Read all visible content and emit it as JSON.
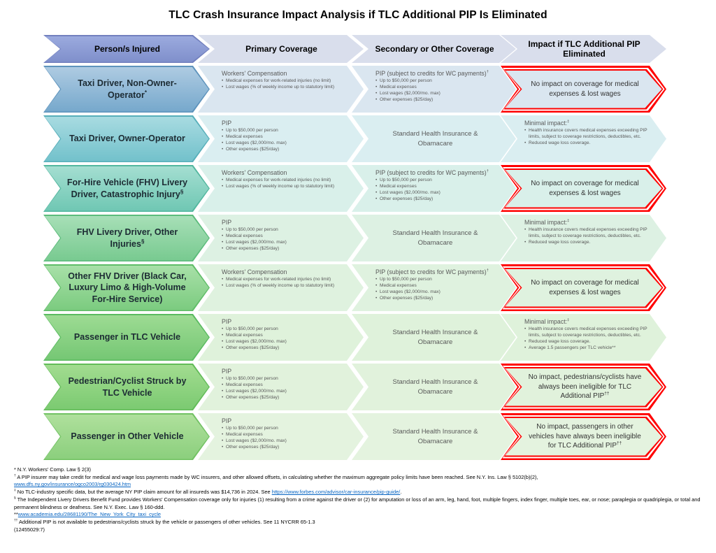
{
  "title": "TLC Crash Insurance Impact Analysis if TLC Additional PIP Is Eliminated",
  "headers": [
    {
      "label": "Person/s Injured"
    },
    {
      "label": "Primary Coverage"
    },
    {
      "label": "Secondary or Other Coverage"
    },
    {
      "label": "Impact if TLC Additional PIP Eliminated"
    }
  ],
  "palette": {
    "header_arrow_top": "#9BAADE",
    "header_arrow_bottom": "#7F8FCB",
    "header_arrow_border": "#7280BE",
    "header_cell_fill": "#D9DEEC",
    "red_border": "#FF0000",
    "body_text": "#595959"
  },
  "rows": [
    {
      "person": "Taxi Driver, Non-Owner-Operator",
      "person_sup": "*",
      "colors": {
        "top": "#AECBE2",
        "bottom": "#76A8CC",
        "border": "#5E93BC",
        "tint": "#DAE6F0"
      },
      "primary": {
        "title": "Workers' Compensation",
        "bullets": [
          "Medical expenses for work-related injuries (no limit)",
          "Lost wages (% of weekly income up to statutory limit)"
        ]
      },
      "secondary": {
        "title": "PIP (subject to credits for WC payments)",
        "sup": "†",
        "bullets": [
          "Up to $50,000 per person",
          "Medical expenses",
          "Lost wages ($2,000/mo. max)",
          "Other expenses ($25/day)"
        ]
      },
      "impact": {
        "type": "no-impact",
        "text": "No impact on coverage for medical expenses & lost wages"
      }
    },
    {
      "person": "Taxi Driver, Owner-Operator",
      "colors": {
        "top": "#A8DBE1",
        "bottom": "#72C1CB",
        "border": "#58AFBA",
        "tint": "#DAEEF1"
      },
      "primary": {
        "title": "PIP",
        "bullets": [
          "Up to $50,000 per person",
          "Medical expenses",
          "Lost wages ($2,000/mo. max)",
          "Other expenses ($25/day)"
        ]
      },
      "secondary": {
        "center": "Standard Health Insurance & Obamacare"
      },
      "impact": {
        "type": "minimal",
        "title": "Minimal impact:",
        "sup": "‡",
        "bullets": [
          "Health insurance covers medical expenses exceeding PIP limits, subject to coverage restrictions, deductibles, etc.",
          "Reduced wage loss coverage."
        ]
      }
    },
    {
      "person": "For-Hire Vehicle (FHV) Livery Driver, Catastrophic Injury",
      "person_sup": "§",
      "colors": {
        "top": "#A4DED1",
        "bottom": "#6FC7B3",
        "border": "#53B79F",
        "tint": "#D9F0EA"
      },
      "primary": {
        "title": "Workers' Compensation",
        "bullets": [
          "Medical expenses for work-related injuries (no limit)",
          "Lost wages (% of weekly income up to statutory limit)"
        ]
      },
      "secondary": {
        "title": "PIP (subject to credits for WC payments)",
        "sup": "†",
        "bullets": [
          "Up to $50,000 per person",
          "Medical expenses",
          "Lost wages ($2,000/mo. max)",
          "Other expenses ($25/day)"
        ]
      },
      "impact": {
        "type": "no-impact",
        "text": "No impact on coverage for medical expenses & lost wages"
      }
    },
    {
      "person": "FHV Livery Driver, Other Injuries",
      "person_sup": "§",
      "colors": {
        "top": "#A7DFB7",
        "bottom": "#78CA90",
        "border": "#5CBB7B",
        "tint": "#DDF1E3"
      },
      "primary": {
        "title": "PIP",
        "bullets": [
          "Up to $50,000 per person",
          "Medical expenses",
          "Lost wages ($2,000/mo. max)",
          "Other expenses ($25/day)"
        ]
      },
      "secondary": {
        "center": "Standard Health Insurance & Obamacare"
      },
      "impact": {
        "type": "minimal",
        "title": "Minimal impact:",
        "sup": "‡",
        "bullets": [
          "Health insurance covers medical expenses exceeding PIP limits, subject to coverage restrictions, deductibles, etc.",
          "Reduced wage loss coverage."
        ]
      }
    },
    {
      "person": "Other FHV Driver (Black Car, Luxury Limo & High-Volume For-Hire Service)",
      "colors": {
        "top": "#A8E0A8",
        "bottom": "#7BCB7F",
        "border": "#60BD68",
        "tint": "#DFF2DF"
      },
      "primary": {
        "title": "Workers' Compensation",
        "bullets": [
          "Medical expenses for work-related injuries (no limit)",
          "Lost wages (% of weekly income up to statutory limit)"
        ]
      },
      "secondary": {
        "title": "PIP (subject to credits for WC payments)",
        "sup": "†",
        "bullets": [
          "Up to $50,000 per person",
          "Medical expenses",
          "Lost wages ($2,000/mo. max)",
          "Other expenses ($25/day)"
        ]
      },
      "impact": {
        "type": "no-impact",
        "text": "No impact on coverage for medical expenses & lost wages"
      }
    },
    {
      "person": "Passenger in TLC Vehicle",
      "colors": {
        "top": "#9DDB93",
        "bottom": "#75C774",
        "border": "#5ABB60",
        "tint": "#DFF2DB"
      },
      "primary": {
        "title": "PIP",
        "bullets": [
          "Up to $50,000 per person",
          "Medical expenses",
          "Lost wages ($2,000/mo. max)",
          "Other expenses ($25/day)"
        ]
      },
      "secondary": {
        "center": "Standard Health Insurance & Obamacare"
      },
      "impact": {
        "type": "minimal",
        "title": "Minimal impact:",
        "sup": "‡",
        "bullets": [
          "Health insurance covers medical expenses exceeding PIP limits, subject to coverage restrictions, deductibles, etc.",
          "Reduced wage loss coverage.",
          "Average 1.5 passengers per TLC vehicle**"
        ]
      }
    },
    {
      "person": "Pedestrian/Cyclist Struck by TLC Vehicle",
      "colors": {
        "top": "#A2DC90",
        "bottom": "#7BCA71",
        "border": "#62BC58",
        "tint": "#E1F2DC"
      },
      "primary": {
        "title": "PIP",
        "bullets": [
          "Up to $50,000 per person",
          "Medical expenses",
          "Lost wages ($2,000/mo. max)",
          "Other expenses ($25/day)"
        ]
      },
      "secondary": {
        "center": "Standard Health Insurance & Obamacare"
      },
      "impact": {
        "type": "no-impact",
        "text": "No impact, pedestrians/cyclists have always been ineligible for TLC Additional PIP",
        "sup": "††"
      }
    },
    {
      "person": "Passenger in Other Vehicle",
      "colors": {
        "top": "#AFE09C",
        "bottom": "#8BCF7D",
        "border": "#72C263",
        "tint": "#E4F3DF"
      },
      "primary": {
        "title": "PIP",
        "bullets": [
          "Up to $50,000 per person",
          "Medical expenses",
          "Lost wages ($2,000/mo. max)",
          "Other expenses ($25/day)"
        ]
      },
      "secondary": {
        "center": "Standard Health Insurance & Obamacare"
      },
      "impact": {
        "type": "no-impact",
        "text": "No impact, passengers in other vehicles have always been ineligible for TLC Additional PIP",
        "sup": "††"
      }
    }
  ],
  "footnotes": [
    [
      [
        {
          "t": "* N.Y. Workers' Comp. Law § 2(3)"
        }
      ]
    ],
    [
      [
        {
          "s": "†"
        },
        {
          "t": " A PIP insurer may take credit for medical and wage loss payments made by WC insurers, and other allowed offsets, in calculating whether the maximum aggregate policy limits have been reached. See N.Y. Ins. Law § 5102(b)(2),"
        }
      ],
      [
        {
          "l": "www.dfs.ny.gov/insurance/ogco2003/rg030424.htm"
        }
      ]
    ],
    [
      [
        {
          "s": "‡"
        },
        {
          "t": " No TLC-industry specific data, but the average NY PIP claim amount for all insureds was $14,736 in 2024. See "
        },
        {
          "l": "https://www.forbes.com/advisor/car-insurance/pip-guide/"
        },
        {
          "t": "."
        }
      ]
    ],
    [
      [
        {
          "s": "§"
        },
        {
          "t": " The Independent Livery Drivers Benefit Fund provides Workers' Compensation coverage only for injuries (1) resulting from a crime against the driver or (2) for amputation or loss of an arm, leg, hand, foot, multiple fingers, index finger, multiple toes, ear, or nose; paraplegia or quadriplegia, or total and permanent blindness or deafness. See N.Y. Exec. Law § 160-ddd."
        }
      ]
    ],
    [
      [
        {
          "t": "**"
        },
        {
          "l": "www.academia.edu/28681190/The_New_York_City_taxi_cycle"
        }
      ]
    ],
    [
      [
        {
          "s": "††"
        },
        {
          "t": " Additional PIP is not available to pedestrians/cyclists struck by the vehicle or passengers of other vehicles. See 11 NYCRR 65-1.3"
        }
      ]
    ],
    [
      [
        {
          "t": "(12455029:7)"
        }
      ]
    ]
  ]
}
